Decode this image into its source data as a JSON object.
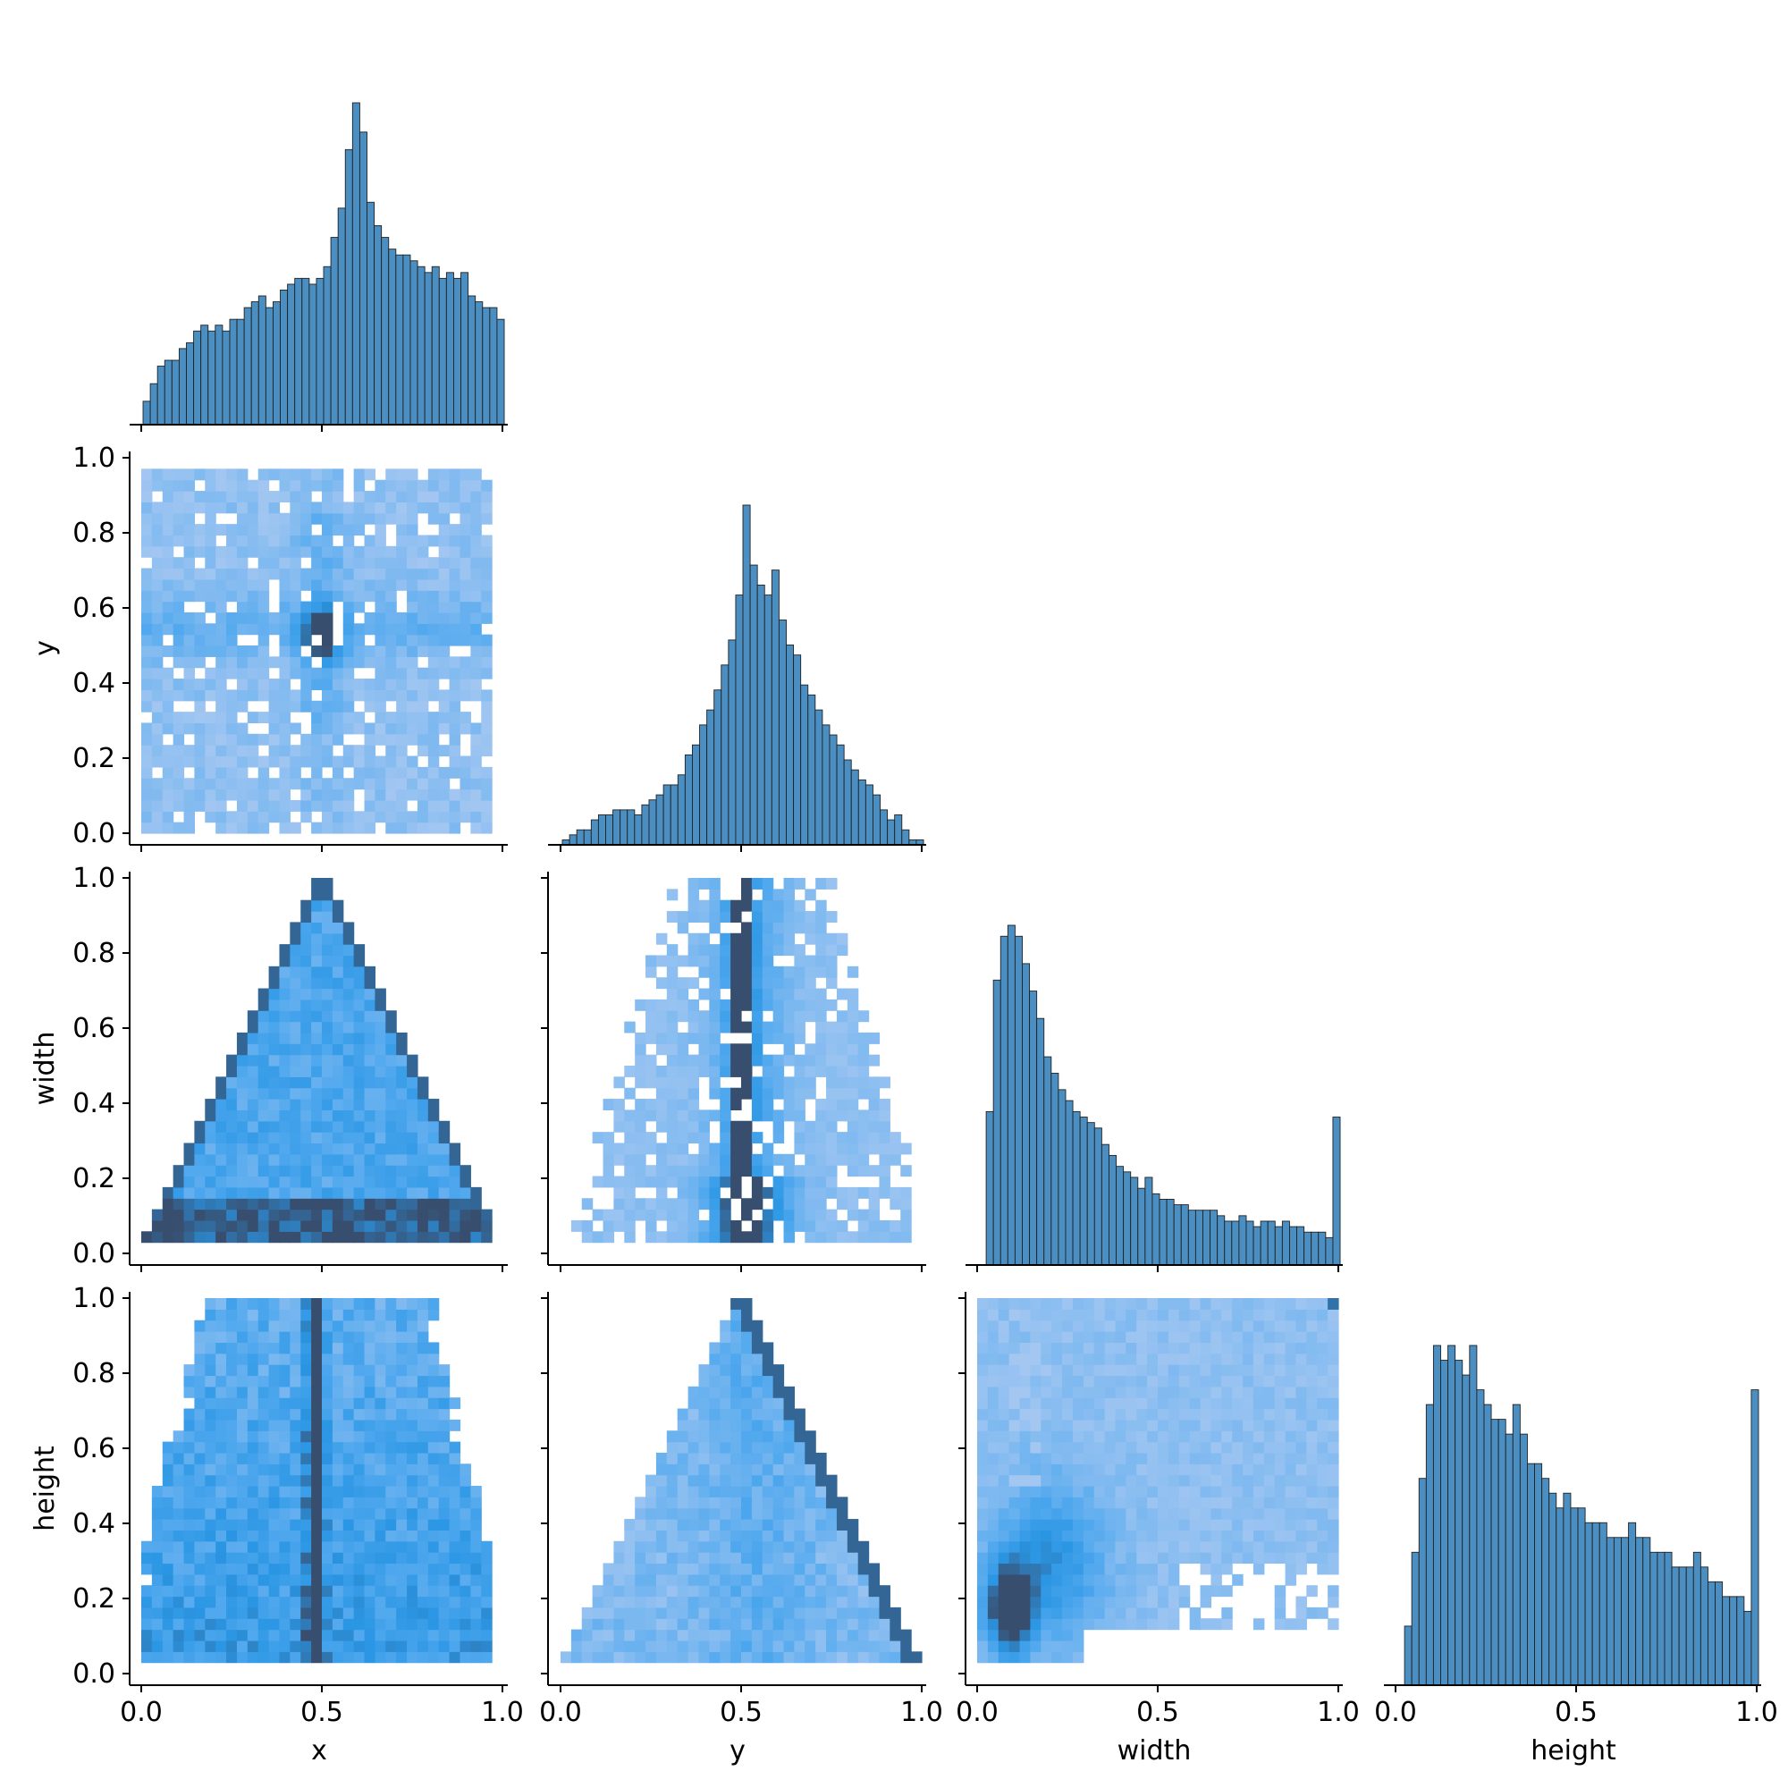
{
  "chart_data": {
    "type": "pairplot",
    "variables": [
      "x",
      "y",
      "width",
      "height"
    ],
    "corner": true,
    "axis_range": [
      0.0,
      1.0
    ],
    "x_tick_labels": [
      "0.0",
      "0.5",
      "1.0"
    ],
    "y_tick_labels": [
      "0.0",
      "0.2",
      "0.4",
      "0.6",
      "0.8",
      "1.0"
    ],
    "grid": false,
    "legend": "none",
    "colors": {
      "bar_fill": "#4a8ec2",
      "bar_edge": "#222222",
      "heat_low": "#a9c6f0",
      "heat_mid": "#2a9ae8",
      "heat_high": "#39506e"
    },
    "charts": [
      {
        "type": "histogram",
        "variable": "x",
        "bins": 50,
        "x_range": [
          0,
          1
        ],
        "values": [
          4,
          7,
          10,
          11,
          11,
          13,
          14,
          16,
          17,
          16,
          17,
          16,
          18,
          18,
          20,
          21,
          22,
          20,
          21,
          23,
          24,
          25,
          25,
          24,
          25,
          27,
          32,
          37,
          47,
          55,
          50,
          38,
          34,
          32,
          30,
          29,
          29,
          28,
          27,
          26,
          27,
          25,
          26,
          25,
          26,
          22,
          21,
          20,
          20,
          18
        ]
      },
      {
        "type": "heatmap",
        "x_var": "x",
        "y_var": "y",
        "note": "density concentrated near x=0.5, y=0.55; uniform background across x in [0.02,0.97], y in [0.02,0.95]"
      },
      {
        "type": "histogram",
        "variable": "y",
        "bins": 50,
        "x_range": [
          0,
          1
        ],
        "values": [
          1,
          2,
          3,
          3,
          5,
          6,
          6,
          7,
          7,
          7,
          6,
          8,
          9,
          10,
          12,
          12,
          14,
          18,
          20,
          24,
          27,
          31,
          36,
          41,
          50,
          68,
          56,
          52,
          50,
          55,
          45,
          40,
          38,
          32,
          30,
          27,
          24,
          22,
          20,
          17,
          15,
          13,
          12,
          10,
          7,
          5,
          6,
          3,
          1,
          1
        ]
      },
      {
        "type": "heatmap",
        "x_var": "x",
        "y_var": "width",
        "note": "triangular support: width <= 2*min(x,1-x); dense edges along the triangle sides and near width≈0.05-0.15"
      },
      {
        "type": "heatmap",
        "x_var": "y",
        "y_var": "width",
        "note": "dense vertical band at y≈0.5 and near width≈0.05-0.2"
      },
      {
        "type": "histogram",
        "variable": "width",
        "bins": 50,
        "x_range": [
          0,
          1
        ],
        "values": [
          0,
          28,
          52,
          60,
          62,
          60,
          55,
          50,
          45,
          38,
          35,
          32,
          30,
          28,
          27,
          26,
          25,
          22,
          20,
          18,
          17,
          16,
          14,
          16,
          13,
          12,
          12,
          11,
          11,
          10,
          10,
          10,
          10,
          9,
          8,
          8,
          9,
          8,
          7,
          8,
          8,
          7,
          8,
          7,
          7,
          6,
          6,
          6,
          5,
          27
        ]
      },
      {
        "type": "heatmap",
        "x_var": "x",
        "y_var": "height",
        "note": "dense vertical band at x≈0.48-0.52; more density at low height"
      },
      {
        "type": "heatmap",
        "x_var": "y",
        "y_var": "height",
        "note": "triangular support with apex at y=0.5,height=1; dark diagonal along right edge"
      },
      {
        "type": "heatmap",
        "x_var": "width",
        "y_var": "height",
        "note": "dense cluster at width≈0.05-0.15, height≈0.05-0.3; dark cell at width≈1,height≈1"
      },
      {
        "type": "histogram",
        "variable": "height",
        "bins": 50,
        "x_range": [
          0,
          1
        ],
        "values": [
          0,
          4,
          9,
          14,
          19,
          23,
          22,
          23,
          22,
          21,
          23,
          20,
          19,
          18,
          18,
          17,
          19,
          17,
          15,
          15,
          14,
          13,
          12,
          13,
          12,
          12,
          11,
          11,
          11,
          10,
          10,
          10,
          11,
          10,
          10,
          9,
          9,
          9,
          8,
          8,
          8,
          9,
          8,
          7,
          7,
          6,
          6,
          6,
          5,
          20
        ]
      }
    ]
  }
}
